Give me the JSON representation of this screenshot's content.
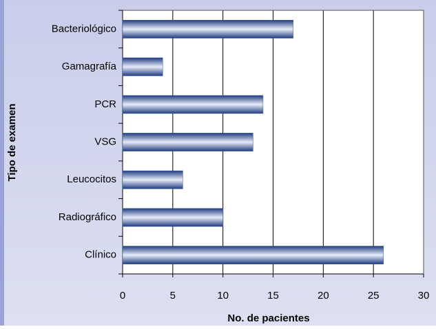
{
  "chart_data": {
    "type": "bar",
    "orientation": "horizontal",
    "x_label": "No. de pacientes",
    "y_label": "Tipo de examen",
    "categories": [
      "Bacteriológico",
      "Gamagrafía",
      "PCR",
      "VSG",
      "Leucocitos",
      "Radiográfico",
      "Clínico"
    ],
    "values": [
      17,
      4,
      14,
      13,
      6,
      10,
      26
    ],
    "color": "#3a5aa0",
    "xlim": [
      0,
      30
    ],
    "xticks": [
      0,
      5,
      10,
      15,
      20,
      25,
      30
    ],
    "grid": true
  }
}
